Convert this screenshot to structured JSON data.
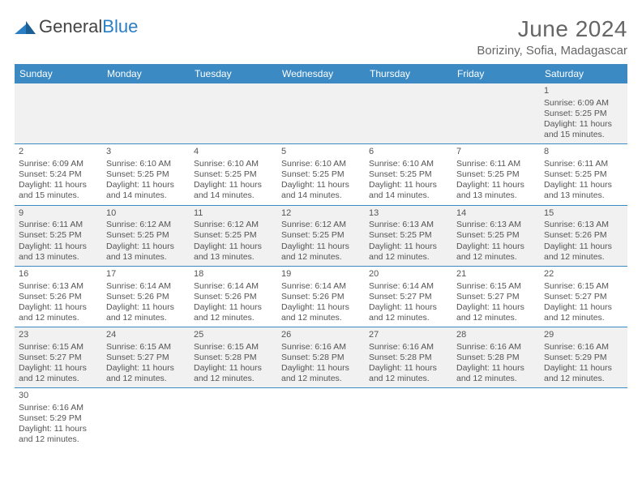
{
  "logo": {
    "text1": "General",
    "text2": "Blue"
  },
  "title": "June 2024",
  "location": "Boriziny, Sofia, Madagascar",
  "header_bg": "#3b8ac4",
  "header_fg": "#ffffff",
  "border_color": "#3b8ac4",
  "row_alt_bg": "#f1f1f1",
  "daynames": [
    "Sunday",
    "Monday",
    "Tuesday",
    "Wednesday",
    "Thursday",
    "Friday",
    "Saturday"
  ],
  "weeks": [
    [
      null,
      null,
      null,
      null,
      null,
      null,
      {
        "n": "1",
        "sr": "6:09 AM",
        "ss": "5:25 PM",
        "dl": "11 hours and 15 minutes."
      }
    ],
    [
      {
        "n": "2",
        "sr": "6:09 AM",
        "ss": "5:24 PM",
        "dl": "11 hours and 15 minutes."
      },
      {
        "n": "3",
        "sr": "6:10 AM",
        "ss": "5:25 PM",
        "dl": "11 hours and 14 minutes."
      },
      {
        "n": "4",
        "sr": "6:10 AM",
        "ss": "5:25 PM",
        "dl": "11 hours and 14 minutes."
      },
      {
        "n": "5",
        "sr": "6:10 AM",
        "ss": "5:25 PM",
        "dl": "11 hours and 14 minutes."
      },
      {
        "n": "6",
        "sr": "6:10 AM",
        "ss": "5:25 PM",
        "dl": "11 hours and 14 minutes."
      },
      {
        "n": "7",
        "sr": "6:11 AM",
        "ss": "5:25 PM",
        "dl": "11 hours and 13 minutes."
      },
      {
        "n": "8",
        "sr": "6:11 AM",
        "ss": "5:25 PM",
        "dl": "11 hours and 13 minutes."
      }
    ],
    [
      {
        "n": "9",
        "sr": "6:11 AM",
        "ss": "5:25 PM",
        "dl": "11 hours and 13 minutes."
      },
      {
        "n": "10",
        "sr": "6:12 AM",
        "ss": "5:25 PM",
        "dl": "11 hours and 13 minutes."
      },
      {
        "n": "11",
        "sr": "6:12 AM",
        "ss": "5:25 PM",
        "dl": "11 hours and 13 minutes."
      },
      {
        "n": "12",
        "sr": "6:12 AM",
        "ss": "5:25 PM",
        "dl": "11 hours and 12 minutes."
      },
      {
        "n": "13",
        "sr": "6:13 AM",
        "ss": "5:25 PM",
        "dl": "11 hours and 12 minutes."
      },
      {
        "n": "14",
        "sr": "6:13 AM",
        "ss": "5:25 PM",
        "dl": "11 hours and 12 minutes."
      },
      {
        "n": "15",
        "sr": "6:13 AM",
        "ss": "5:26 PM",
        "dl": "11 hours and 12 minutes."
      }
    ],
    [
      {
        "n": "16",
        "sr": "6:13 AM",
        "ss": "5:26 PM",
        "dl": "11 hours and 12 minutes."
      },
      {
        "n": "17",
        "sr": "6:14 AM",
        "ss": "5:26 PM",
        "dl": "11 hours and 12 minutes."
      },
      {
        "n": "18",
        "sr": "6:14 AM",
        "ss": "5:26 PM",
        "dl": "11 hours and 12 minutes."
      },
      {
        "n": "19",
        "sr": "6:14 AM",
        "ss": "5:26 PM",
        "dl": "11 hours and 12 minutes."
      },
      {
        "n": "20",
        "sr": "6:14 AM",
        "ss": "5:27 PM",
        "dl": "11 hours and 12 minutes."
      },
      {
        "n": "21",
        "sr": "6:15 AM",
        "ss": "5:27 PM",
        "dl": "11 hours and 12 minutes."
      },
      {
        "n": "22",
        "sr": "6:15 AM",
        "ss": "5:27 PM",
        "dl": "11 hours and 12 minutes."
      }
    ],
    [
      {
        "n": "23",
        "sr": "6:15 AM",
        "ss": "5:27 PM",
        "dl": "11 hours and 12 minutes."
      },
      {
        "n": "24",
        "sr": "6:15 AM",
        "ss": "5:27 PM",
        "dl": "11 hours and 12 minutes."
      },
      {
        "n": "25",
        "sr": "6:15 AM",
        "ss": "5:28 PM",
        "dl": "11 hours and 12 minutes."
      },
      {
        "n": "26",
        "sr": "6:16 AM",
        "ss": "5:28 PM",
        "dl": "11 hours and 12 minutes."
      },
      {
        "n": "27",
        "sr": "6:16 AM",
        "ss": "5:28 PM",
        "dl": "11 hours and 12 minutes."
      },
      {
        "n": "28",
        "sr": "6:16 AM",
        "ss": "5:28 PM",
        "dl": "11 hours and 12 minutes."
      },
      {
        "n": "29",
        "sr": "6:16 AM",
        "ss": "5:29 PM",
        "dl": "11 hours and 12 minutes."
      }
    ],
    [
      {
        "n": "30",
        "sr": "6:16 AM",
        "ss": "5:29 PM",
        "dl": "11 hours and 12 minutes."
      },
      null,
      null,
      null,
      null,
      null,
      null
    ]
  ],
  "labels": {
    "sunrise": "Sunrise: ",
    "sunset": "Sunset: ",
    "daylight": "Daylight: "
  }
}
